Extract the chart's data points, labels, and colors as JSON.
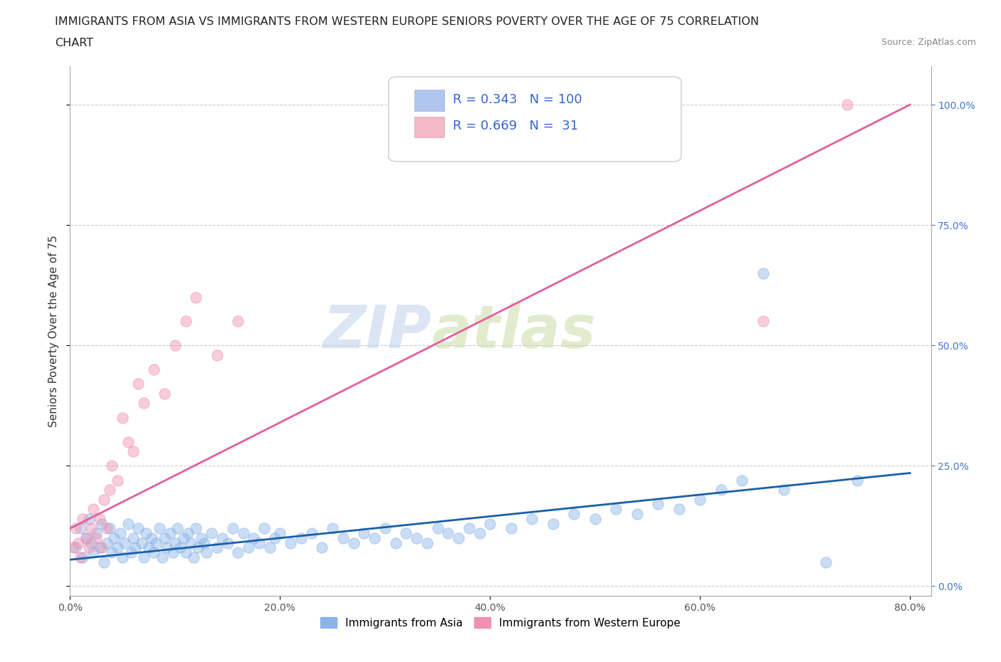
{
  "title_line1": "IMMIGRANTS FROM ASIA VS IMMIGRANTS FROM WESTERN EUROPE SENIORS POVERTY OVER THE AGE OF 75 CORRELATION",
  "title_line2": "CHART",
  "source_text": "Source: ZipAtlas.com",
  "ylabel": "Seniors Poverty Over the Age of 75",
  "xlabel_ticks": [
    "0.0%",
    "20.0%",
    "40.0%",
    "60.0%",
    "80.0%"
  ],
  "ylabel_ticks_right": [
    "0.0%",
    "25.0%",
    "50.0%",
    "75.0%",
    "100.0%"
  ],
  "xlim": [
    0.0,
    0.82
  ],
  "ylim": [
    -0.02,
    1.08
  ],
  "legend_items": [
    {
      "label": "Immigrants from Asia",
      "color": "#aec6f0",
      "R": 0.343,
      "N": 100
    },
    {
      "label": "Immigrants from Western Europe",
      "color": "#f4b8c8",
      "R": 0.669,
      "N": 31
    }
  ],
  "watermark_zip": "ZIP",
  "watermark_atlas": "atlas",
  "blue_scatter_x": [
    0.005,
    0.01,
    0.012,
    0.015,
    0.018,
    0.02,
    0.022,
    0.025,
    0.028,
    0.03,
    0.032,
    0.035,
    0.038,
    0.04,
    0.042,
    0.045,
    0.048,
    0.05,
    0.052,
    0.055,
    0.058,
    0.06,
    0.062,
    0.065,
    0.068,
    0.07,
    0.072,
    0.075,
    0.078,
    0.08,
    0.082,
    0.085,
    0.088,
    0.09,
    0.092,
    0.095,
    0.098,
    0.1,
    0.102,
    0.105,
    0.108,
    0.11,
    0.112,
    0.115,
    0.118,
    0.12,
    0.122,
    0.125,
    0.128,
    0.13,
    0.135,
    0.14,
    0.145,
    0.15,
    0.155,
    0.16,
    0.165,
    0.17,
    0.175,
    0.18,
    0.185,
    0.19,
    0.195,
    0.2,
    0.21,
    0.22,
    0.23,
    0.24,
    0.25,
    0.26,
    0.27,
    0.28,
    0.29,
    0.3,
    0.31,
    0.32,
    0.33,
    0.34,
    0.35,
    0.36,
    0.37,
    0.38,
    0.39,
    0.4,
    0.42,
    0.44,
    0.46,
    0.48,
    0.5,
    0.52,
    0.54,
    0.56,
    0.58,
    0.6,
    0.62,
    0.64,
    0.66,
    0.68,
    0.72,
    0.75
  ],
  "blue_scatter_y": [
    0.08,
    0.12,
    0.06,
    0.1,
    0.14,
    0.09,
    0.07,
    0.11,
    0.08,
    0.13,
    0.05,
    0.09,
    0.12,
    0.07,
    0.1,
    0.08,
    0.11,
    0.06,
    0.09,
    0.13,
    0.07,
    0.1,
    0.08,
    0.12,
    0.09,
    0.06,
    0.11,
    0.08,
    0.1,
    0.07,
    0.09,
    0.12,
    0.06,
    0.1,
    0.08,
    0.11,
    0.07,
    0.09,
    0.12,
    0.08,
    0.1,
    0.07,
    0.11,
    0.09,
    0.06,
    0.12,
    0.08,
    0.1,
    0.09,
    0.07,
    0.11,
    0.08,
    0.1,
    0.09,
    0.12,
    0.07,
    0.11,
    0.08,
    0.1,
    0.09,
    0.12,
    0.08,
    0.1,
    0.11,
    0.09,
    0.1,
    0.11,
    0.08,
    0.12,
    0.1,
    0.09,
    0.11,
    0.1,
    0.12,
    0.09,
    0.11,
    0.1,
    0.09,
    0.12,
    0.11,
    0.1,
    0.12,
    0.11,
    0.13,
    0.12,
    0.14,
    0.13,
    0.15,
    0.14,
    0.16,
    0.15,
    0.17,
    0.16,
    0.18,
    0.2,
    0.22,
    0.65,
    0.2,
    0.05,
    0.22
  ],
  "pink_scatter_x": [
    0.003,
    0.005,
    0.008,
    0.01,
    0.012,
    0.015,
    0.018,
    0.02,
    0.022,
    0.025,
    0.028,
    0.03,
    0.032,
    0.035,
    0.038,
    0.04,
    0.045,
    0.05,
    0.055,
    0.06,
    0.065,
    0.07,
    0.08,
    0.09,
    0.1,
    0.11,
    0.12,
    0.14,
    0.16,
    0.66,
    0.74
  ],
  "pink_scatter_y": [
    0.08,
    0.12,
    0.09,
    0.06,
    0.14,
    0.1,
    0.08,
    0.12,
    0.16,
    0.1,
    0.14,
    0.08,
    0.18,
    0.12,
    0.2,
    0.25,
    0.22,
    0.35,
    0.3,
    0.28,
    0.42,
    0.38,
    0.45,
    0.4,
    0.5,
    0.55,
    0.6,
    0.48,
    0.55,
    0.55,
    1.0
  ],
  "blue_line_x": [
    0.0,
    0.8
  ],
  "blue_line_y": [
    0.055,
    0.235
  ],
  "pink_line_x": [
    0.0,
    0.8
  ],
  "pink_line_y": [
    0.12,
    1.0
  ],
  "scatter_size": 120,
  "scatter_alpha": 0.45,
  "line_width": 2.0,
  "grid_color": "#cccccc",
  "background_color": "#ffffff",
  "title_fontsize": 11.5,
  "axis_label_fontsize": 11,
  "tick_fontsize": 10,
  "legend_fontsize": 13,
  "blue_color": "#8ab4e8",
  "pink_color": "#f090b0",
  "blue_line_color": "#1a5fa8",
  "pink_line_color": "#e060a0"
}
